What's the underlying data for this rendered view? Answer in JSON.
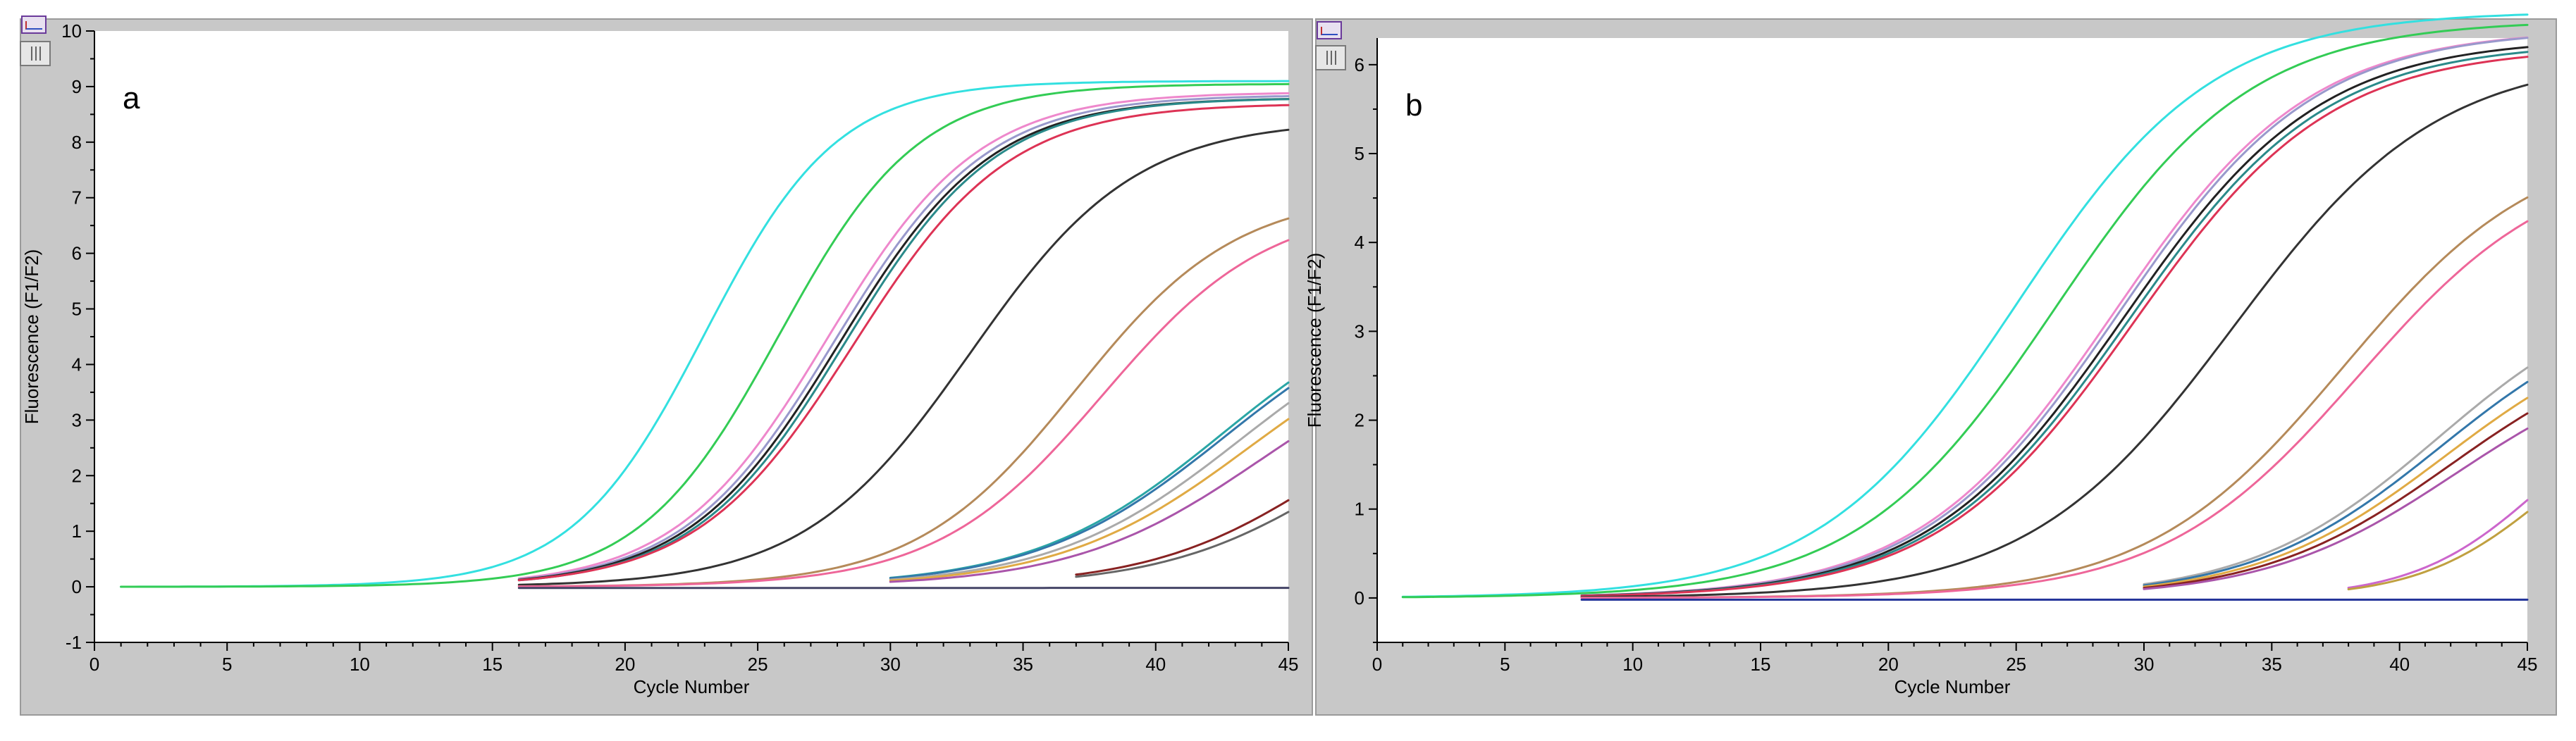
{
  "chart_data": [
    {
      "type": "line",
      "panel_label": "a",
      "xlabel": "Cycle Number",
      "ylabel": "Fluorescence (F1/F2)",
      "xlim": [
        0,
        45
      ],
      "ylim": [
        -1,
        10
      ],
      "xticks": [
        0,
        5,
        10,
        15,
        20,
        25,
        30,
        35,
        40,
        45
      ],
      "yticks": [
        -1,
        0,
        1,
        2,
        3,
        4,
        5,
        6,
        7,
        8,
        9,
        10
      ],
      "grid": false,
      "legend": "none",
      "series": [
        {
          "color": "#33e0e0",
          "start": 1,
          "end": 45,
          "base": 0.0,
          "plateau": 9.1,
          "midpoint": 23.0,
          "slope": 0.4
        },
        {
          "color": "#33cc55",
          "start": 1,
          "end": 45,
          "base": 0.0,
          "plateau": 9.05,
          "midpoint": 25.8,
          "slope": 0.38
        },
        {
          "color": "#ee88cc",
          "start": 16,
          "end": 45,
          "base": 0.0,
          "plateau": 8.9,
          "midpoint": 27.6,
          "slope": 0.35
        },
        {
          "color": "#9999cc",
          "start": 16,
          "end": 45,
          "base": 0.0,
          "plateau": 8.85,
          "midpoint": 27.9,
          "slope": 0.35
        },
        {
          "color": "#222222",
          "start": 16,
          "end": 45,
          "base": 0.0,
          "plateau": 8.8,
          "midpoint": 28.1,
          "slope": 0.35
        },
        {
          "color": "#2a8a8a",
          "start": 16,
          "end": 45,
          "base": 0.0,
          "plateau": 8.8,
          "midpoint": 28.3,
          "slope": 0.35
        },
        {
          "color": "#dd3355",
          "start": 16,
          "end": 45,
          "base": 0.0,
          "plateau": 8.7,
          "midpoint": 28.6,
          "slope": 0.34
        },
        {
          "color": "#333333",
          "start": 16,
          "end": 45,
          "base": 0.0,
          "plateau": 8.4,
          "midpoint": 33.0,
          "slope": 0.32
        },
        {
          "color": "#b58a5a",
          "start": 16,
          "end": 45,
          "base": 0.0,
          "plateau": 7.1,
          "midpoint": 37.0,
          "slope": 0.33
        },
        {
          "color": "#ee6699",
          "start": 16,
          "end": 45,
          "base": 0.0,
          "plateau": 6.9,
          "midpoint": 38.0,
          "slope": 0.32
        },
        {
          "color": "#2aa6a6",
          "start": 30,
          "end": 45,
          "base": 0.0,
          "plateau": 5.5,
          "midpoint": 42.5,
          "slope": 0.28
        },
        {
          "color": "#3377aa",
          "start": 30,
          "end": 45,
          "base": 0.0,
          "plateau": 5.4,
          "midpoint": 42.6,
          "slope": 0.28
        },
        {
          "color": "#aaaaaa",
          "start": 30,
          "end": 45,
          "base": 0.0,
          "plateau": 5.3,
          "midpoint": 43.2,
          "slope": 0.28
        },
        {
          "color": "#e0aa44",
          "start": 30,
          "end": 45,
          "base": 0.0,
          "plateau": 5.0,
          "midpoint": 43.5,
          "slope": 0.28
        },
        {
          "color": "#aa55aa",
          "start": 30,
          "end": 45,
          "base": 0.0,
          "plateau": 4.6,
          "midpoint": 44.0,
          "slope": 0.28
        },
        {
          "color": "#882222",
          "start": 37,
          "end": 45,
          "base": 0.0,
          "plateau": 4.0,
          "midpoint": 46.5,
          "slope": 0.3
        },
        {
          "color": "#666666",
          "start": 37,
          "end": 45,
          "base": 0.0,
          "plateau": 3.8,
          "midpoint": 47.0,
          "slope": 0.3
        },
        {
          "color": "#444466",
          "start": 16,
          "end": 45,
          "base": -0.02,
          "plateau": 0.0,
          "midpoint": 80,
          "slope": 0.1
        }
      ]
    },
    {
      "type": "line",
      "panel_label": "b",
      "xlabel": "Cycle Number",
      "ylabel": "Fluorescence (F1/F2)",
      "xlim": [
        0,
        45
      ],
      "ylim": [
        -0.5,
        6.3
      ],
      "xticks": [
        0,
        5,
        10,
        15,
        20,
        25,
        30,
        35,
        40,
        45
      ],
      "yticks": [
        0,
        1,
        2,
        3,
        4,
        5,
        6
      ],
      "grid": false,
      "legend": "none",
      "series": [
        {
          "color": "#33e0e0",
          "start": 1,
          "end": 45,
          "base": 0.0,
          "plateau": 6.6,
          "midpoint": 25.0,
          "slope": 0.26
        },
        {
          "color": "#33cc55",
          "start": 1,
          "end": 45,
          "base": 0.0,
          "plateau": 6.5,
          "midpoint": 26.5,
          "slope": 0.26
        },
        {
          "color": "#ee88cc",
          "start": 8,
          "end": 45,
          "base": 0.0,
          "plateau": 6.4,
          "midpoint": 28.8,
          "slope": 0.26
        },
        {
          "color": "#9999cc",
          "start": 8,
          "end": 45,
          "base": 0.0,
          "plateau": 6.4,
          "midpoint": 29.0,
          "slope": 0.26
        },
        {
          "color": "#222222",
          "start": 8,
          "end": 45,
          "base": 0.0,
          "plateau": 6.3,
          "midpoint": 29.2,
          "slope": 0.26
        },
        {
          "color": "#2a8a8a",
          "start": 8,
          "end": 45,
          "base": 0.0,
          "plateau": 6.25,
          "midpoint": 29.4,
          "slope": 0.26
        },
        {
          "color": "#dd3355",
          "start": 8,
          "end": 45,
          "base": 0.0,
          "plateau": 6.2,
          "midpoint": 29.6,
          "slope": 0.26
        },
        {
          "color": "#333333",
          "start": 8,
          "end": 45,
          "base": 0.0,
          "plateau": 6.1,
          "midpoint": 33.5,
          "slope": 0.25
        },
        {
          "color": "#b58a5a",
          "start": 8,
          "end": 45,
          "base": 0.0,
          "plateau": 5.2,
          "midpoint": 37.8,
          "slope": 0.26
        },
        {
          "color": "#ee6699",
          "start": 8,
          "end": 45,
          "base": 0.0,
          "plateau": 5.0,
          "midpoint": 38.4,
          "slope": 0.26
        },
        {
          "color": "#aaaaaa",
          "start": 30,
          "end": 45,
          "base": 0.0,
          "plateau": 3.6,
          "midpoint": 41.5,
          "slope": 0.27
        },
        {
          "color": "#3377aa",
          "start": 30,
          "end": 45,
          "base": 0.0,
          "plateau": 3.4,
          "midpoint": 41.6,
          "slope": 0.27
        },
        {
          "color": "#e0aa44",
          "start": 30,
          "end": 45,
          "base": 0.0,
          "plateau": 3.2,
          "midpoint": 41.8,
          "slope": 0.27
        },
        {
          "color": "#882222",
          "start": 30,
          "end": 45,
          "base": 0.0,
          "plateau": 3.0,
          "midpoint": 42.0,
          "slope": 0.27
        },
        {
          "color": "#aa55aa",
          "start": 30,
          "end": 45,
          "base": 0.0,
          "plateau": 2.8,
          "midpoint": 42.2,
          "slope": 0.27
        },
        {
          "color": "#cc66cc",
          "start": 38,
          "end": 45,
          "base": 0.0,
          "plateau": 2.5,
          "midpoint": 45.6,
          "slope": 0.4
        },
        {
          "color": "#c0a040",
          "start": 38,
          "end": 45,
          "base": 0.0,
          "plateau": 2.3,
          "midpoint": 45.8,
          "slope": 0.4
        },
        {
          "color": "#223399",
          "start": 8,
          "end": 45,
          "base": -0.02,
          "plateau": 0.0,
          "midpoint": 80,
          "slope": 0.1
        }
      ]
    }
  ]
}
